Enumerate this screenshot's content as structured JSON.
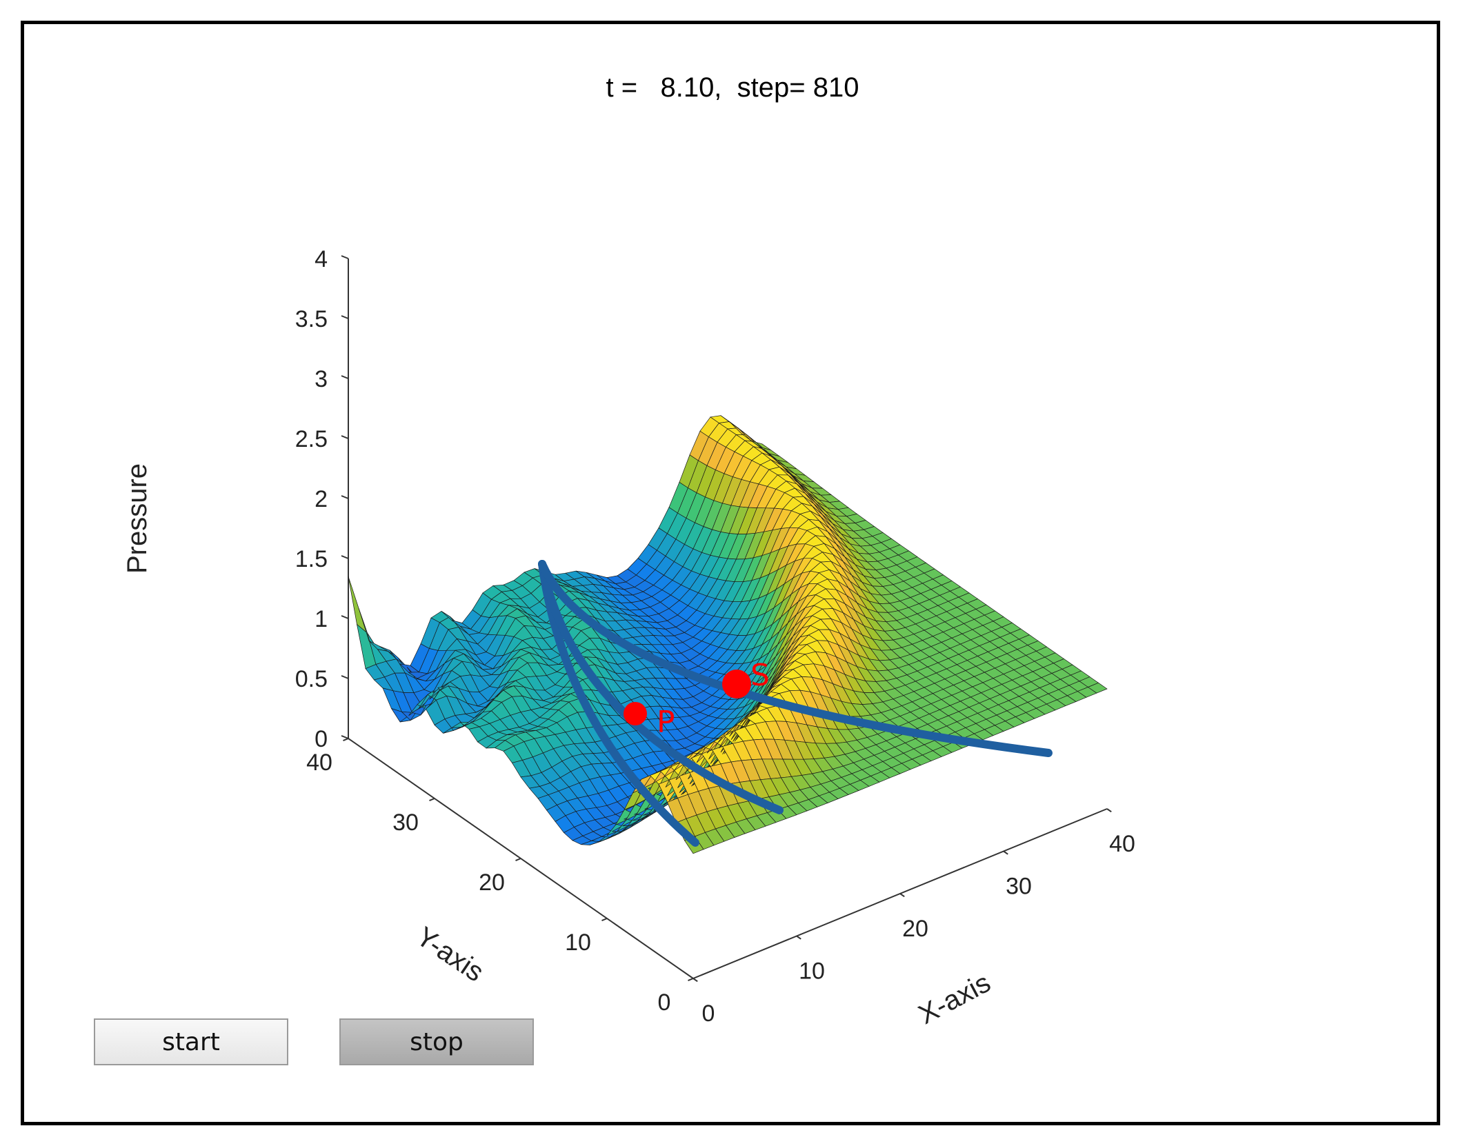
{
  "window": {
    "title": "t =   8.10,  step= 810"
  },
  "controls": {
    "start_label": "start",
    "stop_label": "stop"
  },
  "chart_data": {
    "type": "surface",
    "title": "t =   8.10,  step= 810",
    "xlabel": "X-axis",
    "ylabel": "Y-axis",
    "zlabel": "Pressure",
    "xlim": [
      0,
      40
    ],
    "ylim": [
      0,
      40
    ],
    "zlim": [
      0,
      4
    ],
    "x_ticks": [
      "0",
      "10",
      "20",
      "30",
      "40"
    ],
    "y_ticks": [
      "0",
      "10",
      "20",
      "30",
      "40"
    ],
    "z_ticks": [
      "0",
      "0.5",
      "1",
      "1.5",
      "2",
      "2.5",
      "3",
      "3.5",
      "4"
    ],
    "grid": false,
    "colormap": "parula",
    "source_point": {
      "x": 0,
      "y": 40,
      "z": 1.5
    },
    "annotations": [
      {
        "label": "P",
        "color": "#ff0000"
      },
      {
        "label": "S",
        "color": "#ff0000"
      }
    ],
    "overlay_color": "#1f5fa0"
  }
}
